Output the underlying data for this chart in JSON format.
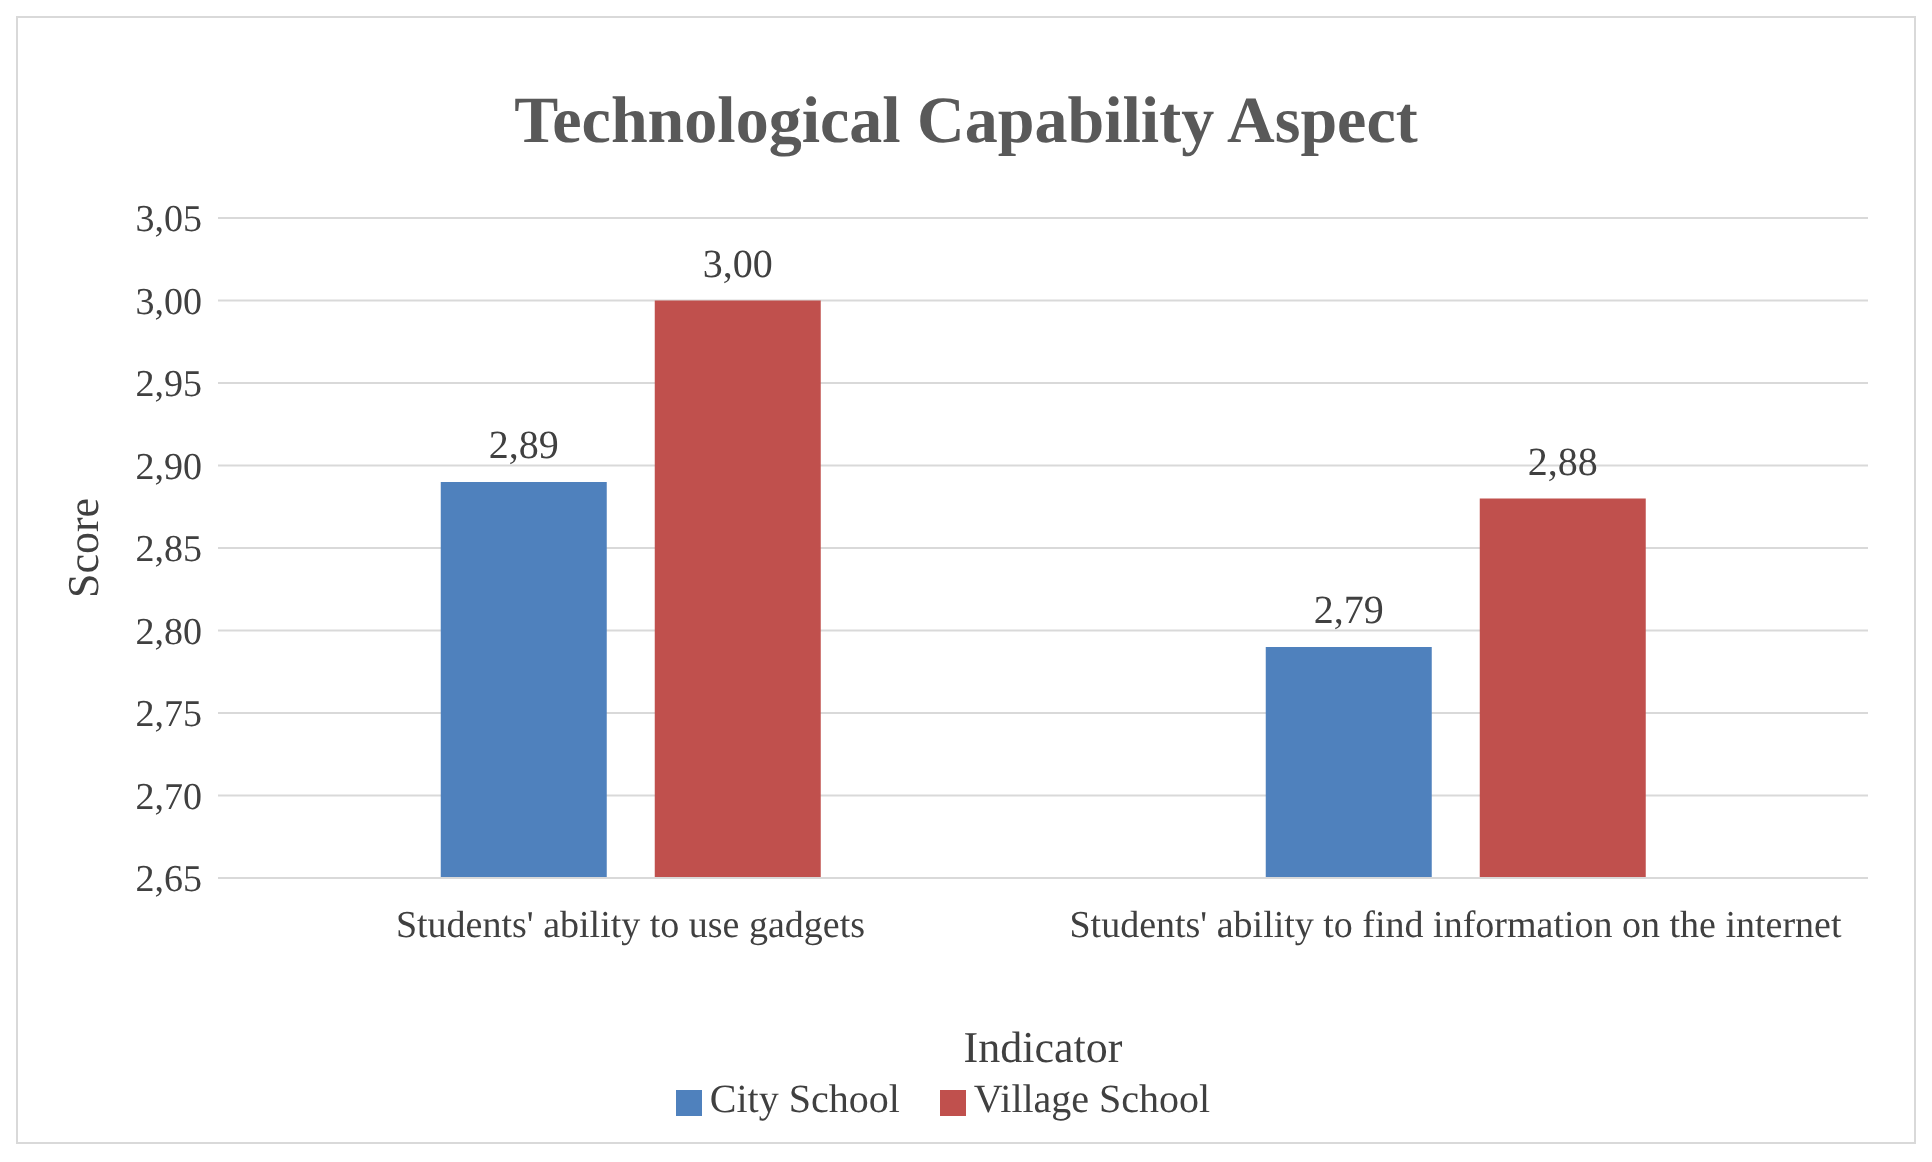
{
  "chart_data": {
    "type": "bar",
    "title": "Technological Capability Aspect",
    "xlabel": "Indicator",
    "ylabel": "Score",
    "categories": [
      "Students' ability to use gadgets",
      "Students' ability to find information on the internet"
    ],
    "series": [
      {
        "name": "City School",
        "color": "#4f81bd",
        "values": [
          2.89,
          2.79
        ],
        "value_labels": [
          "2,89",
          "2,79"
        ]
      },
      {
        "name": "Village School",
        "color": "#c0504d",
        "values": [
          3.0,
          2.88
        ],
        "value_labels": [
          "3,00",
          "2,88"
        ]
      }
    ],
    "ylim": [
      2.65,
      3.05
    ],
    "yticks": [
      {
        "value": 2.65,
        "label": "2,65"
      },
      {
        "value": 2.7,
        "label": "2,70"
      },
      {
        "value": 2.75,
        "label": "2,75"
      },
      {
        "value": 2.8,
        "label": "2,80"
      },
      {
        "value": 2.85,
        "label": "2,85"
      },
      {
        "value": 2.9,
        "label": "2,90"
      },
      {
        "value": 2.95,
        "label": "2,95"
      },
      {
        "value": 3.0,
        "label": "3,00"
      },
      {
        "value": 3.05,
        "label": "3,05"
      }
    ],
    "grid": "y",
    "legend": "bottom"
  }
}
